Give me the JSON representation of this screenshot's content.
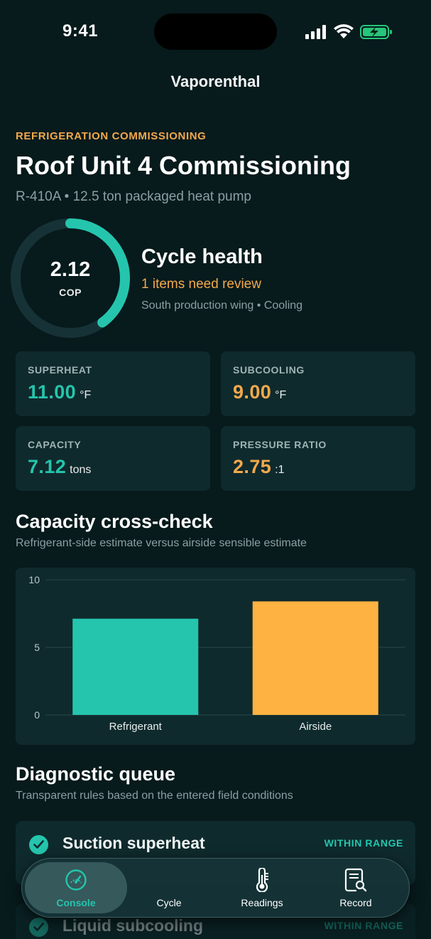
{
  "status_bar": {
    "time": "9:41"
  },
  "nav": {
    "title": "Vaporenthal"
  },
  "header": {
    "eyebrow": "REFRIGERATION COMMISSIONING",
    "title": "Roof Unit 4 Commissioning",
    "subtitle": "R-410A • 12.5 ton packaged heat pump"
  },
  "gauge": {
    "value": "2.12",
    "unit": "COP",
    "fill_fraction": 0.4
  },
  "health": {
    "title": "Cycle health",
    "status": "1 items need review",
    "meta": "South production wing • Cooling"
  },
  "metrics": [
    {
      "label": "SUPERHEAT",
      "value": "11.00",
      "unit": "°F",
      "color": "#25c5ad"
    },
    {
      "label": "SUBCOOLING",
      "value": "9.00",
      "unit": "°F",
      "color": "#f2a94c"
    },
    {
      "label": "CAPACITY",
      "value": "7.12",
      "unit": "tons",
      "color": "#25c5ad"
    },
    {
      "label": "PRESSURE RATIO",
      "value": "2.75",
      "unit": ":1",
      "color": "#f2a94c"
    }
  ],
  "capacity_section": {
    "title": "Capacity cross-check",
    "subtitle": "Refrigerant-side estimate versus airside sensible estimate"
  },
  "chart_data": {
    "type": "bar",
    "categories": [
      "Refrigerant",
      "Airside"
    ],
    "values": [
      7.12,
      8.4
    ],
    "colors": [
      "#25c5ad",
      "#fdb241"
    ],
    "ylim": [
      0,
      10
    ],
    "yticks": [
      "0",
      "5",
      "10"
    ],
    "grid": true
  },
  "diagnostic_section": {
    "title": "Diagnostic queue",
    "subtitle": "Transparent rules based on the entered field conditions"
  },
  "queue": [
    {
      "title": "Suction superheat",
      "badge": "WITHIN RANGE"
    },
    {
      "title": "Liquid subcooling",
      "badge": "WITHIN RANGE"
    }
  ],
  "tabs": [
    {
      "label": "Console",
      "icon": "gauge-icon",
      "active": true
    },
    {
      "label": "Cycle",
      "icon": "cycle-icon",
      "active": false
    },
    {
      "label": "Readings",
      "icon": "thermometer-icon",
      "active": false
    },
    {
      "label": "Record",
      "icon": "document-search-icon",
      "active": false
    }
  ],
  "colors": {
    "background": "#071a1c",
    "card": "#0f2a2d",
    "accent": "#25c5ad",
    "warning": "#f2a94c"
  }
}
